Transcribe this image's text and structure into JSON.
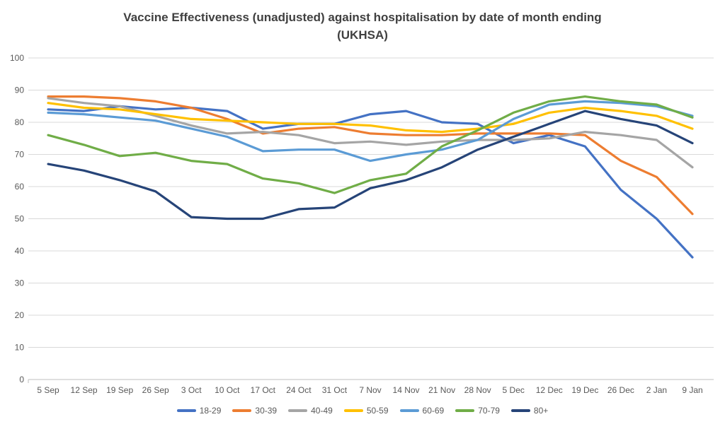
{
  "title_line1": "Vaccine Effectiveness (unadjusted) against hospitalisation by date of month ending",
  "title_line2": "(UKHSA)",
  "chart_data": {
    "type": "line",
    "title": "Vaccine Effectiveness (unadjusted) against hospitalisation by date of month ending (UKHSA)",
    "xlabel": "",
    "ylabel": "",
    "ylim": [
      0,
      100
    ],
    "ytick_step": 10,
    "ytick_labels": [
      "0",
      "10",
      "20",
      "30",
      "40",
      "50",
      "60",
      "70",
      "80",
      "90",
      "100"
    ],
    "grid": true,
    "legend_position": "bottom",
    "categories": [
      "5 Sep",
      "12 Sep",
      "19 Sep",
      "26 Sep",
      "3 Oct",
      "10 Oct",
      "17 Oct",
      "24 Oct",
      "31 Oct",
      "7 Nov",
      "14 Nov",
      "21 Nov",
      "28 Nov",
      "5 Dec",
      "12 Dec",
      "19 Dec",
      "26 Dec",
      "2 Jan",
      "9 Jan"
    ],
    "series": [
      {
        "name": "18-29",
        "color": "#4472C4",
        "values": [
          84,
          83.5,
          85,
          84,
          84.5,
          83.5,
          78,
          79.5,
          79.5,
          82.5,
          83.5,
          80,
          79.5,
          73.5,
          76,
          72.5,
          59,
          50,
          38
        ]
      },
      {
        "name": "30-39",
        "color": "#ED7D31",
        "values": [
          88,
          88,
          87.5,
          86.5,
          84.5,
          81,
          76.5,
          78,
          78.5,
          76.5,
          76,
          76,
          76.5,
          76.5,
          76.5,
          76,
          68,
          63,
          51.5
        ]
      },
      {
        "name": "40-49",
        "color": "#A5A5A5",
        "values": [
          87.5,
          86,
          85,
          82,
          79,
          76.5,
          77,
          76,
          73.5,
          74,
          73,
          74,
          74.5,
          74.5,
          75,
          77,
          76,
          74.5,
          66
        ]
      },
      {
        "name": "50-59",
        "color": "#FFC000",
        "values": [
          86,
          84.5,
          84,
          82.5,
          81,
          80.5,
          80,
          79.5,
          79.5,
          79,
          77.5,
          77,
          78,
          79.5,
          83,
          84.5,
          83.5,
          82,
          78
        ]
      },
      {
        "name": "60-69",
        "color": "#5B9BD5",
        "values": [
          83,
          82.5,
          81.5,
          80.5,
          78,
          75.5,
          71,
          71.5,
          71.5,
          68,
          70,
          71.5,
          74.5,
          81,
          85.5,
          86.5,
          86,
          85,
          82
        ]
      },
      {
        "name": "70-79",
        "color": "#70AD47",
        "values": [
          76,
          73,
          69.5,
          70.5,
          68,
          67,
          62.5,
          61,
          58,
          62,
          64,
          72.5,
          77.5,
          83,
          86.5,
          88,
          86.5,
          85.5,
          81.5
        ]
      },
      {
        "name": "80+",
        "color": "#264478",
        "values": [
          67,
          65,
          62,
          58.5,
          50.5,
          50,
          50,
          53,
          53.5,
          59.5,
          62,
          66,
          71.5,
          75.5,
          79.5,
          83.5,
          81,
          79,
          73.5
        ]
      }
    ],
    "styles": {
      "title_color": "#404040",
      "tick_label_color": "#595959",
      "gridline_color": "#D9D9D9",
      "axis_line_color": "#BFBFBF",
      "background": "#FFFFFF",
      "line_width": 3.2
    }
  }
}
